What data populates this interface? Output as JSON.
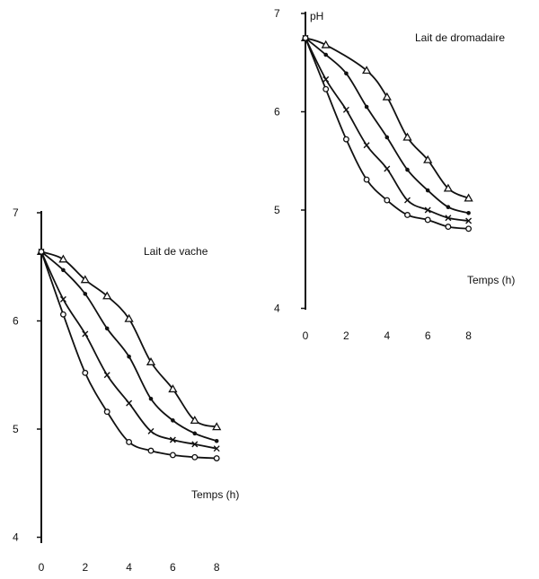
{
  "chart_data": [
    {
      "type": "line",
      "title": "Lait de vache",
      "xlabel": "Temps (h)",
      "ylabel": "",
      "xlim": [
        0,
        8
      ],
      "ylim": [
        4,
        7
      ],
      "xticks": [
        "0",
        "2",
        "4",
        "6",
        "8"
      ],
      "yticks": [
        "4",
        "5",
        "6",
        "7"
      ],
      "grid": false,
      "series": [
        {
          "marker": "triangle",
          "x": [
            0,
            1,
            2,
            3,
            4,
            5,
            6,
            7,
            8
          ],
          "y": [
            6.64,
            6.57,
            6.38,
            6.23,
            6.02,
            5.62,
            5.37,
            5.08,
            5.02
          ]
        },
        {
          "marker": "filled-circle",
          "x": [
            0,
            1,
            2,
            3,
            4,
            5,
            6,
            7,
            8
          ],
          "y": [
            6.64,
            6.47,
            6.25,
            5.93,
            5.67,
            5.28,
            5.08,
            4.96,
            4.89
          ]
        },
        {
          "marker": "cross",
          "x": [
            0,
            1,
            2,
            3,
            4,
            5,
            6,
            7,
            8
          ],
          "y": [
            6.64,
            6.2,
            5.88,
            5.5,
            5.24,
            4.98,
            4.9,
            4.86,
            4.82
          ]
        },
        {
          "marker": "open-circle",
          "x": [
            0,
            1,
            2,
            3,
            4,
            5,
            6,
            7,
            8
          ],
          "y": [
            6.64,
            6.06,
            5.52,
            5.16,
            4.88,
            4.8,
            4.76,
            4.74,
            4.73
          ]
        }
      ]
    },
    {
      "type": "line",
      "title": "Lait de dromadaire",
      "xlabel": "Temps (h)",
      "ylabel": "pH",
      "xlim": [
        0,
        8
      ],
      "ylim": [
        4,
        7
      ],
      "xticks": [
        "0",
        "2",
        "4",
        "6",
        "8"
      ],
      "yticks": [
        "4",
        "5",
        "6",
        "7"
      ],
      "grid": false,
      "series": [
        {
          "marker": "triangle",
          "x": [
            0,
            1,
            3,
            4,
            5,
            6,
            7,
            8
          ],
          "y": [
            6.75,
            6.68,
            6.42,
            6.15,
            5.74,
            5.51,
            5.22,
            5.12
          ]
        },
        {
          "marker": "filled-circle",
          "x": [
            0,
            1,
            2,
            3,
            4,
            5,
            6,
            7,
            8
          ],
          "y": [
            6.75,
            6.58,
            6.39,
            6.05,
            5.74,
            5.41,
            5.2,
            5.03,
            4.97
          ]
        },
        {
          "marker": "cross",
          "x": [
            0,
            1,
            2,
            3,
            4,
            5,
            6,
            7,
            8
          ],
          "y": [
            6.75,
            6.33,
            6.02,
            5.66,
            5.42,
            5.1,
            5.0,
            4.92,
            4.89
          ]
        },
        {
          "marker": "open-circle",
          "x": [
            0,
            1,
            2,
            3,
            4,
            5,
            6,
            7,
            8
          ],
          "y": [
            6.75,
            6.23,
            5.72,
            5.31,
            5.1,
            4.95,
            4.9,
            4.83,
            4.81
          ]
        }
      ]
    }
  ]
}
